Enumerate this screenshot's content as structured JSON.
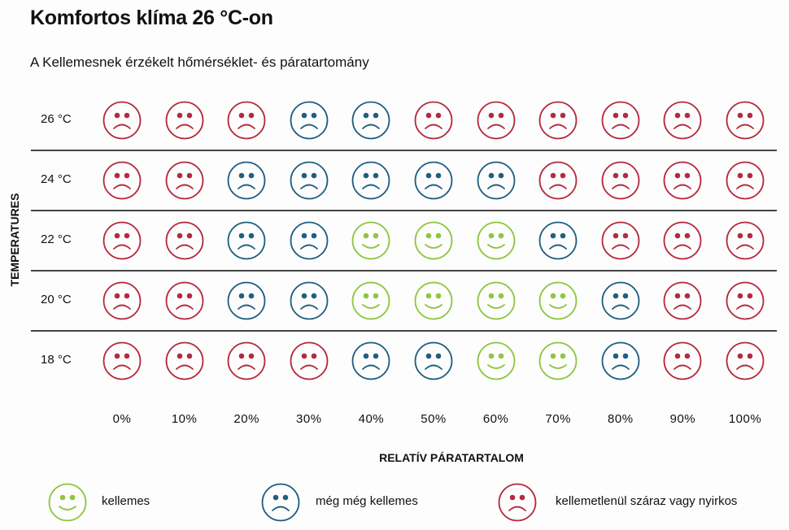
{
  "title": "Komfortos klíma 26 °C-on",
  "subtitle": "A Kellemesnek érzékelt hőmérséklet- és páratartomány",
  "colors": {
    "kellemes": "#8dc63f",
    "meg": "#1f5f80",
    "kellemetlen": "#b52a3c"
  },
  "chart_data": {
    "type": "heatmap",
    "title": "Komfortos klíma 26 °C-on",
    "xlabel": "RELATÍV PÁRATARTALOM",
    "ylabel": "TEMPERATURES",
    "x": [
      "0%",
      "10%",
      "20%",
      "30%",
      "40%",
      "50%",
      "60%",
      "70%",
      "80%",
      "90%",
      "100%"
    ],
    "y": [
      "26 °C",
      "24 °C",
      "22 °C",
      "20 °C",
      "18 °C"
    ],
    "cells": [
      [
        "kellemetlen",
        "kellemetlen",
        "kellemetlen",
        "meg",
        "meg",
        "kellemetlen",
        "kellemetlen",
        "kellemetlen",
        "kellemetlen",
        "kellemetlen",
        "kellemetlen"
      ],
      [
        "kellemetlen",
        "kellemetlen",
        "meg",
        "meg",
        "meg",
        "meg",
        "meg",
        "kellemetlen",
        "kellemetlen",
        "kellemetlen",
        "kellemetlen"
      ],
      [
        "kellemetlen",
        "kellemetlen",
        "meg",
        "meg",
        "kellemes",
        "kellemes",
        "kellemes",
        "meg",
        "kellemetlen",
        "kellemetlen",
        "kellemetlen"
      ],
      [
        "kellemetlen",
        "kellemetlen",
        "meg",
        "meg",
        "kellemes",
        "kellemes",
        "kellemes",
        "kellemes",
        "meg",
        "kellemetlen",
        "kellemetlen"
      ],
      [
        "kellemetlen",
        "kellemetlen",
        "kellemetlen",
        "kellemetlen",
        "meg",
        "meg",
        "kellemes",
        "kellemes",
        "meg",
        "kellemetlen",
        "kellemetlen"
      ]
    ],
    "legend": [
      {
        "key": "kellemes",
        "label": "kellemes"
      },
      {
        "key": "meg",
        "label": "még még kellemes"
      },
      {
        "key": "kellemetlen",
        "label": "kellemetlenül száraz vagy nyirkos"
      }
    ],
    "legend_position": "bottom"
  }
}
